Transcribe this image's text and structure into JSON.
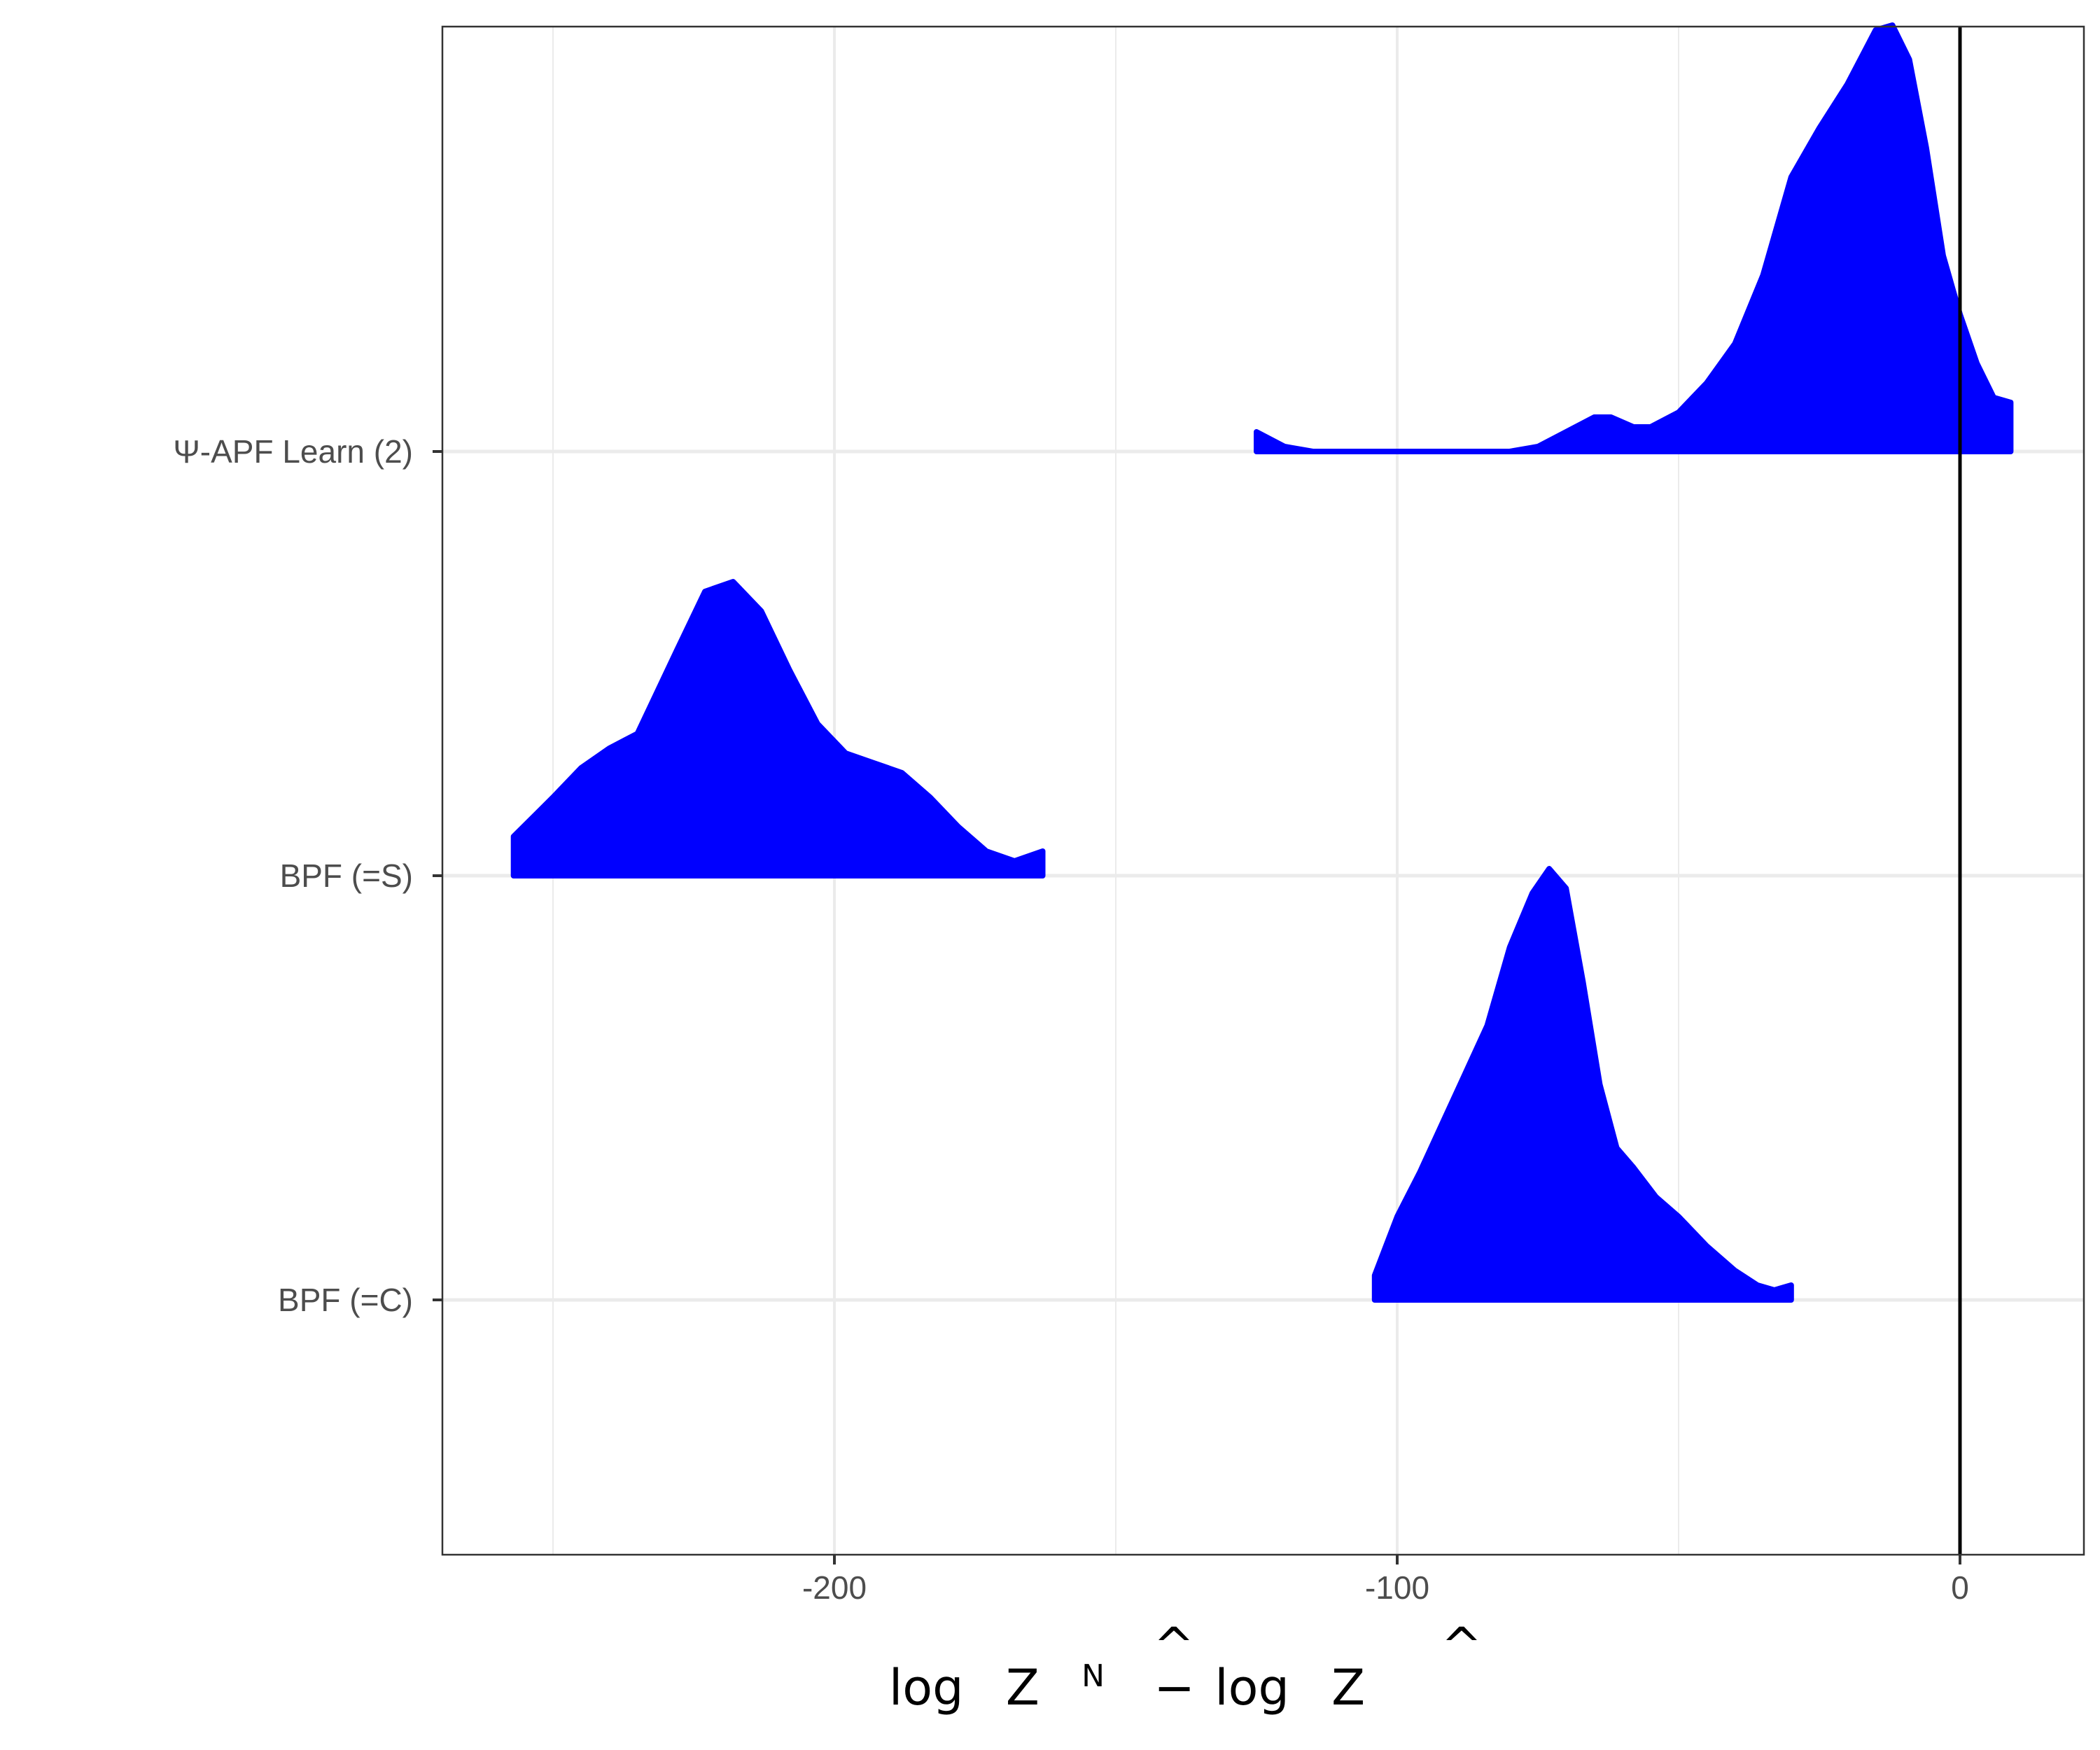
{
  "chart_data": {
    "type": "ridgeline",
    "xlabel": {
      "log1": "log",
      "hat1": "^",
      "z1": "Z",
      "sup": "N",
      "minus": "−",
      "log2": "log",
      "hat2": "^",
      "z2": "Z"
    },
    "ylabel": "",
    "xlim": [
      -270,
      22
    ],
    "x_ticks": [
      {
        "value": -200,
        "label": "-200"
      },
      {
        "value": -100,
        "label": "-100"
      },
      {
        "value": 0,
        "label": "0"
      }
    ],
    "x_minor_gridlines": [
      -250,
      -150,
      -50
    ],
    "reference_line_x": 0,
    "grid": true,
    "fill_color": "#0000ff",
    "categories": [
      "Ψ-APF Learn (2)",
      "BPF (=S)",
      "BPF (=C)"
    ],
    "series": [
      {
        "name": "Ψ-APF Learn (2)",
        "x": [
          -125,
          -120,
          -115,
          -110,
          -100,
          -90,
          -80,
          -75,
          -70,
          -65,
          -62,
          -58,
          -55,
          -50,
          -45,
          -40,
          -35,
          -30,
          -25,
          -20,
          -15,
          -12,
          -9,
          -6,
          -3,
          0,
          3,
          6,
          9
        ],
        "density": [
          0.04,
          0.01,
          0.0,
          0.0,
          0.0,
          0.0,
          0.0,
          0.01,
          0.04,
          0.07,
          0.07,
          0.05,
          0.05,
          0.08,
          0.14,
          0.22,
          0.36,
          0.56,
          0.66,
          0.75,
          0.86,
          0.87,
          0.8,
          0.62,
          0.4,
          0.28,
          0.18,
          0.11,
          0.1
        ]
      },
      {
        "name": "BPF (=S)",
        "x": [
          -257,
          -250,
          -245,
          -240,
          -235,
          -228,
          -223,
          -218,
          -213,
          -208,
          -203,
          -198,
          -193,
          -188,
          -183,
          -178,
          -173,
          -168,
          -163
        ],
        "density": [
          0.08,
          0.16,
          0.22,
          0.26,
          0.29,
          0.46,
          0.58,
          0.6,
          0.54,
          0.42,
          0.31,
          0.25,
          0.23,
          0.21,
          0.16,
          0.1,
          0.05,
          0.03,
          0.05
        ]
      },
      {
        "name": "BPF (=C)",
        "x": [
          -104,
          -100,
          -96,
          -92,
          -88,
          -84,
          -80,
          -76,
          -73,
          -70,
          -67,
          -64,
          -61,
          -58,
          -54,
          -50,
          -45,
          -40,
          -36,
          -33,
          -30
        ],
        "density": [
          0.05,
          0.17,
          0.26,
          0.36,
          0.46,
          0.56,
          0.72,
          0.83,
          0.88,
          0.84,
          0.65,
          0.44,
          0.31,
          0.27,
          0.21,
          0.17,
          0.11,
          0.06,
          0.03,
          0.02,
          0.03
        ]
      }
    ]
  }
}
